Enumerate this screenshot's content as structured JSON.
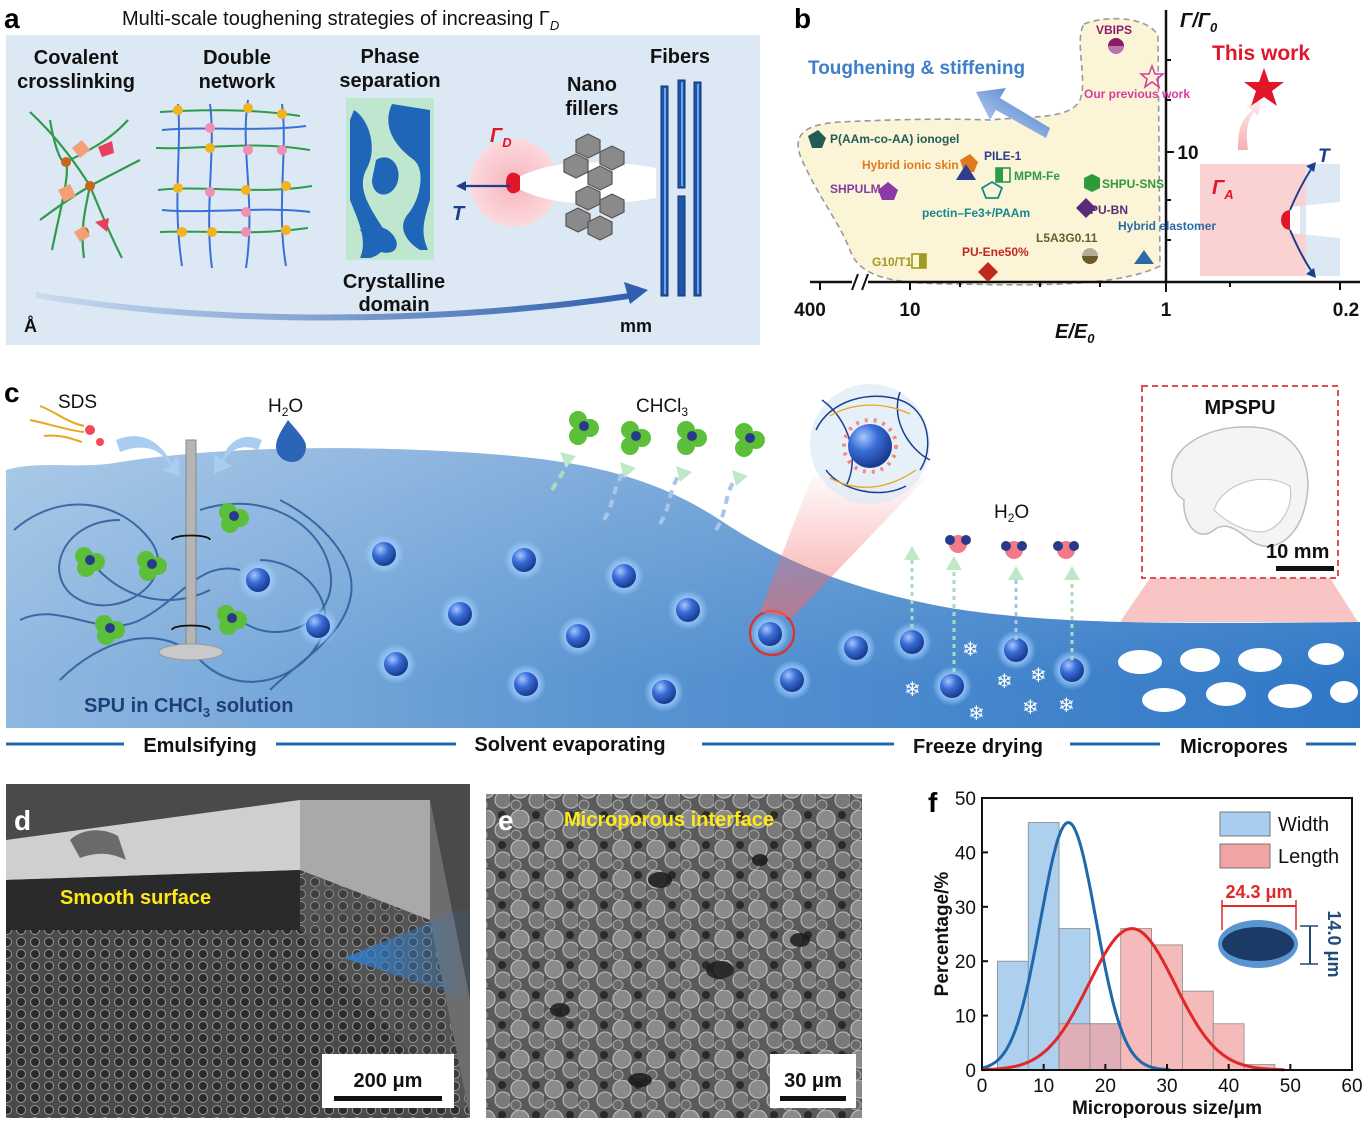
{
  "panel_a": {
    "letter": "a",
    "title": "Multi-scale toughening strategies of increasing Γ",
    "title_sub": "D",
    "strategies": [
      {
        "line1": "Covalent",
        "line2": "crosslinking"
      },
      {
        "line1": "Double",
        "line2": "network"
      },
      {
        "line1": "Phase",
        "line2": "separation"
      },
      {
        "line1": "Nano",
        "line2": "fillers"
      },
      {
        "line1": "Fibers",
        "line2": ""
      }
    ],
    "crystalline": {
      "line1": "Crystalline",
      "line2": "domain"
    },
    "gamma_d": "Γ",
    "gamma_d_sub": "D",
    "tension": "T",
    "scale_small": "Å",
    "scale_large": "mm"
  },
  "panel_b": {
    "letter": "b",
    "highlight": "Toughening & stiffening",
    "ylabel": "Γ/Γ",
    "ylabel_sub": "0",
    "xlabel": "E/E",
    "xlabel_sub": "0",
    "xticks": [
      "400",
      "10",
      "1",
      "0.2"
    ],
    "ytick": "10",
    "this_work": "This work",
    "gamma_a": "Γ",
    "gamma_a_sub": "A",
    "tension": "T",
    "materials": [
      {
        "label": "VBIPS",
        "color": "#8b1a6b"
      },
      {
        "label": "Our previous work",
        "color": "#d43fa0"
      },
      {
        "label": "P(AAm-co-AA) ionogel",
        "color": "#1f5c55"
      },
      {
        "label": "Hybrid ionic skin",
        "color": "#e07a1f"
      },
      {
        "label": "PILE-1",
        "color": "#2c3e8c"
      },
      {
        "label": "MPM-Fe",
        "color": "#2e9a4a"
      },
      {
        "label": "SHPULM",
        "color": "#8a3aa5"
      },
      {
        "label": "pectin–Fe3+/PAAm",
        "color": "#138a8a"
      },
      {
        "label": "SHPU-SNS",
        "color": "#2e9a3a"
      },
      {
        "label": "PU-BN",
        "color": "#5a2a7a"
      },
      {
        "label": "Hybrid elastomer",
        "color": "#2a6aa8"
      },
      {
        "label": "L5A3G0.11",
        "color": "#6b5a2a"
      },
      {
        "label": "PU-Ene50%",
        "color": "#c0281e"
      },
      {
        "label": "G10/T1",
        "color": "#a09a20"
      }
    ]
  },
  "panel_c": {
    "letter": "c",
    "sds": "SDS",
    "water": "H2O",
    "chcl3": "CHCl3",
    "water2": "H2O",
    "solution": "SPU in CHCl3 solution",
    "mpspu": "MPSPU",
    "scalebar": "10 mm",
    "steps": [
      "Emulsifying",
      "Solvent evaporating",
      "Freeze drying",
      "Micropores"
    ]
  },
  "panel_d": {
    "letter": "d",
    "label": "Smooth surface",
    "scalebar": "200 μm"
  },
  "panel_e": {
    "letter": "e",
    "label": "Microporous interface",
    "scalebar": "30 μm"
  },
  "chart_data": {
    "type": "bar",
    "panel": "f",
    "xlabel": "Microporous size/μm",
    "ylabel": "Percentage/%",
    "xlim": [
      0,
      60
    ],
    "ylim": [
      0,
      50
    ],
    "xticks": [
      0,
      10,
      20,
      30,
      40,
      50,
      60
    ],
    "yticks": [
      0,
      10,
      20,
      30,
      40,
      50
    ],
    "legend_position": "top-right",
    "series": [
      {
        "name": "Width",
        "color": "#a9cdee",
        "line_color": "#1f68ad",
        "bin_edges": [
          2.5,
          7.5,
          12.5,
          17.5,
          22.5
        ],
        "values": [
          20,
          45.5,
          26,
          8.5
        ],
        "fit_mean": 14.0,
        "fit_sd": 4.5,
        "fit_peak": 45.5
      },
      {
        "name": "Length",
        "color": "#f2a3a3",
        "line_color": "#e02828",
        "bin_edges": [
          12.5,
          17.5,
          22.5,
          27.5,
          32.5,
          37.5,
          42.5,
          47.5
        ],
        "values": [
          8.5,
          8.5,
          26,
          23,
          14.5,
          8.5,
          1
        ],
        "fit_mean": 24.3,
        "fit_sd": 7.0,
        "fit_peak": 26
      }
    ],
    "annotations": {
      "length_label": "24.3 μm",
      "width_label": "14.0 μm"
    }
  }
}
